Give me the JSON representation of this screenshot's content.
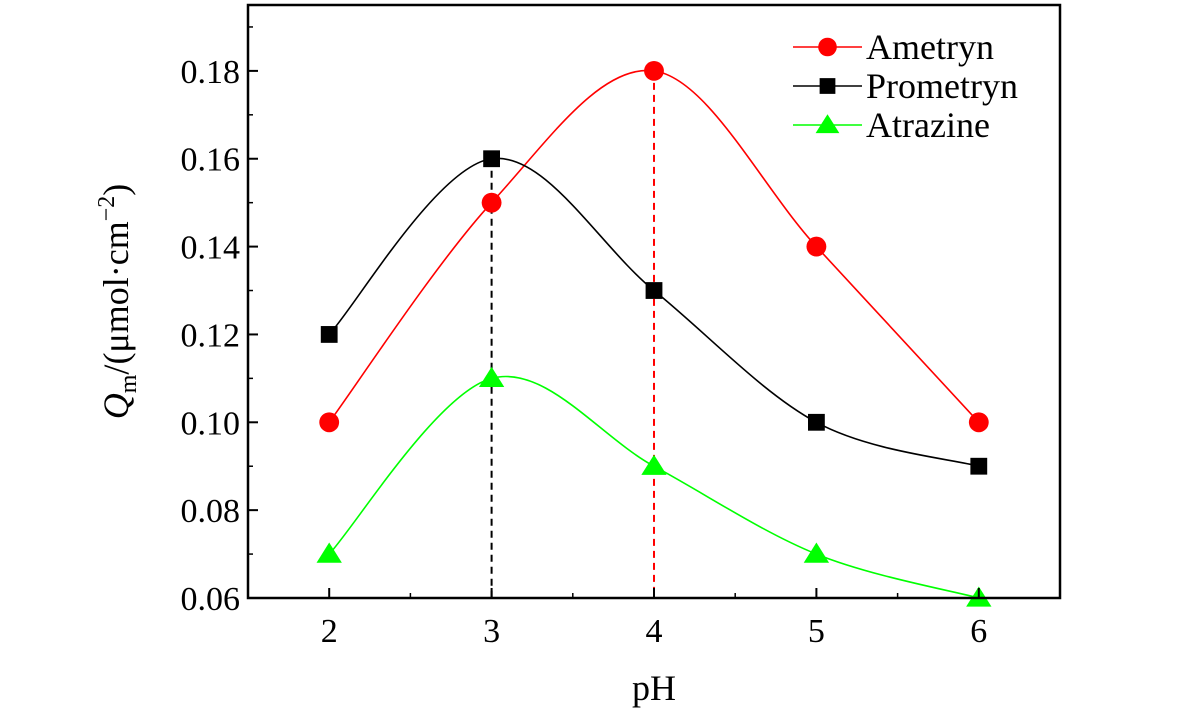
{
  "chart_data": {
    "type": "line",
    "xlabel": "pH",
    "ylabel": {
      "symbol": "Q",
      "subscript": "m",
      "unit_prefix": "/(μmol·cm",
      "unit_exponent": "−2",
      "unit_suffix": ")"
    },
    "x": [
      2,
      3,
      4,
      5,
      6
    ],
    "x_ticks": [
      "2",
      "3",
      "4",
      "5",
      "6"
    ],
    "xlim": [
      1.5,
      6.5
    ],
    "ylim": [
      0.06,
      0.195
    ],
    "y_ticks": [
      "0.06",
      "0.08",
      "0.10",
      "0.12",
      "0.14",
      "0.16",
      "0.18"
    ],
    "grid": false,
    "legend_position": "top-right",
    "series": [
      {
        "name": "Ametryn",
        "color": "#ff0000",
        "marker": "circle",
        "values": [
          0.1,
          0.15,
          0.18,
          0.14,
          0.1
        ]
      },
      {
        "name": "Prometryn",
        "color": "#000000",
        "marker": "square",
        "values": [
          0.12,
          0.16,
          0.13,
          0.1,
          0.09
        ]
      },
      {
        "name": "Atrazine",
        "color": "#00ff00",
        "marker": "triangle",
        "values": [
          0.07,
          0.11,
          0.09,
          0.07,
          0.06
        ]
      }
    ],
    "reference_lines": [
      {
        "x": 3,
        "y": 0.16,
        "color": "#000000",
        "style": "dashed"
      },
      {
        "x": 4,
        "y": 0.18,
        "color": "#ff0000",
        "style": "dashed"
      }
    ]
  }
}
